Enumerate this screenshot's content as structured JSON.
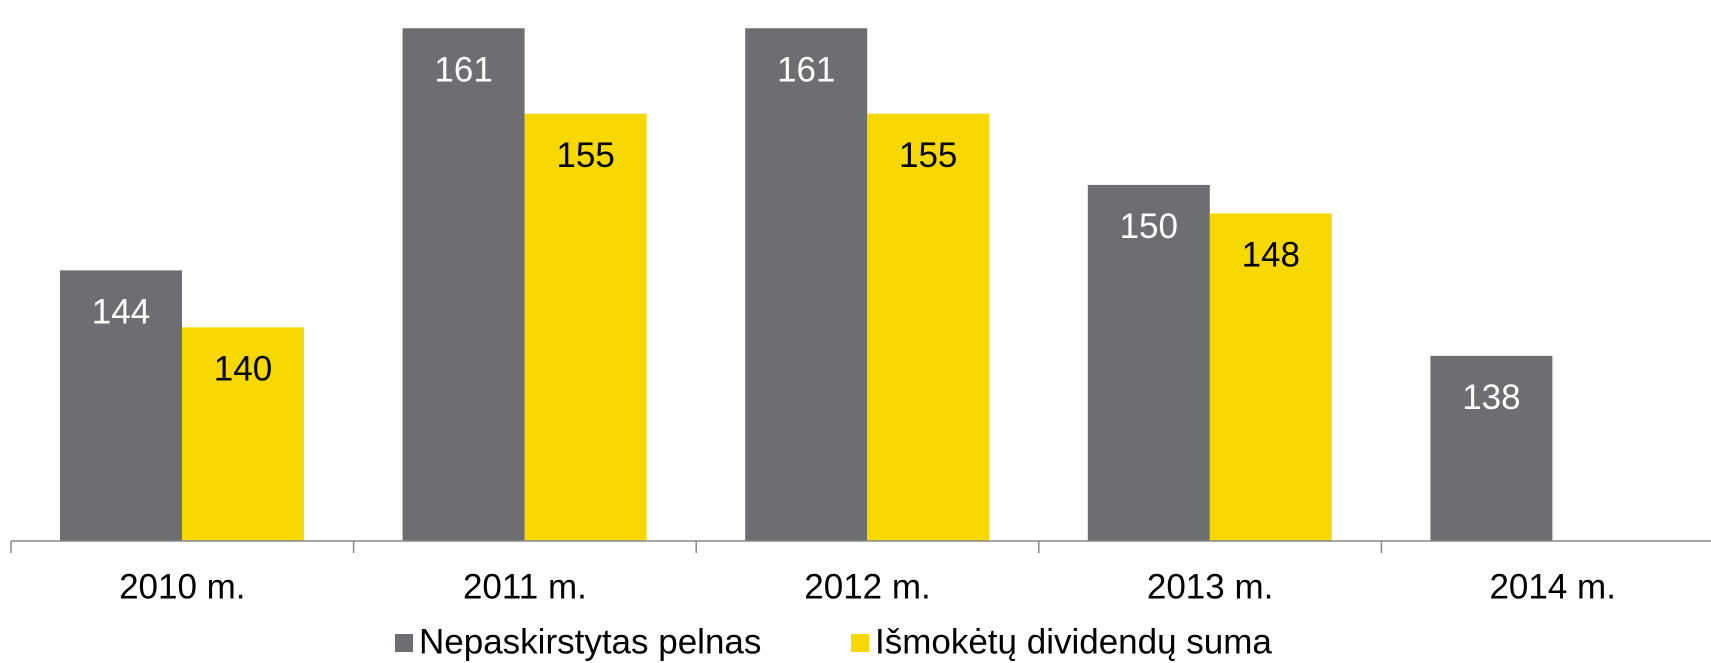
{
  "chart_data": {
    "type": "bar",
    "categories": [
      "2010 m.",
      "2011 m.",
      "2012 m.",
      "2013 m.",
      "2014 m."
    ],
    "series": [
      {
        "name": "Nepaskirstytas pelnas",
        "color": "#6d6e71",
        "label_color": "#ffffff",
        "values": [
          144,
          161,
          161,
          150,
          138
        ]
      },
      {
        "name": "Išmokėtų dividendų suma",
        "color": "#f7d800",
        "label_color": "#000000",
        "values": [
          140,
          155,
          155,
          148,
          null
        ]
      }
    ],
    "ylim": [
      125,
      162
    ],
    "grid": false,
    "legend": "bottom"
  }
}
